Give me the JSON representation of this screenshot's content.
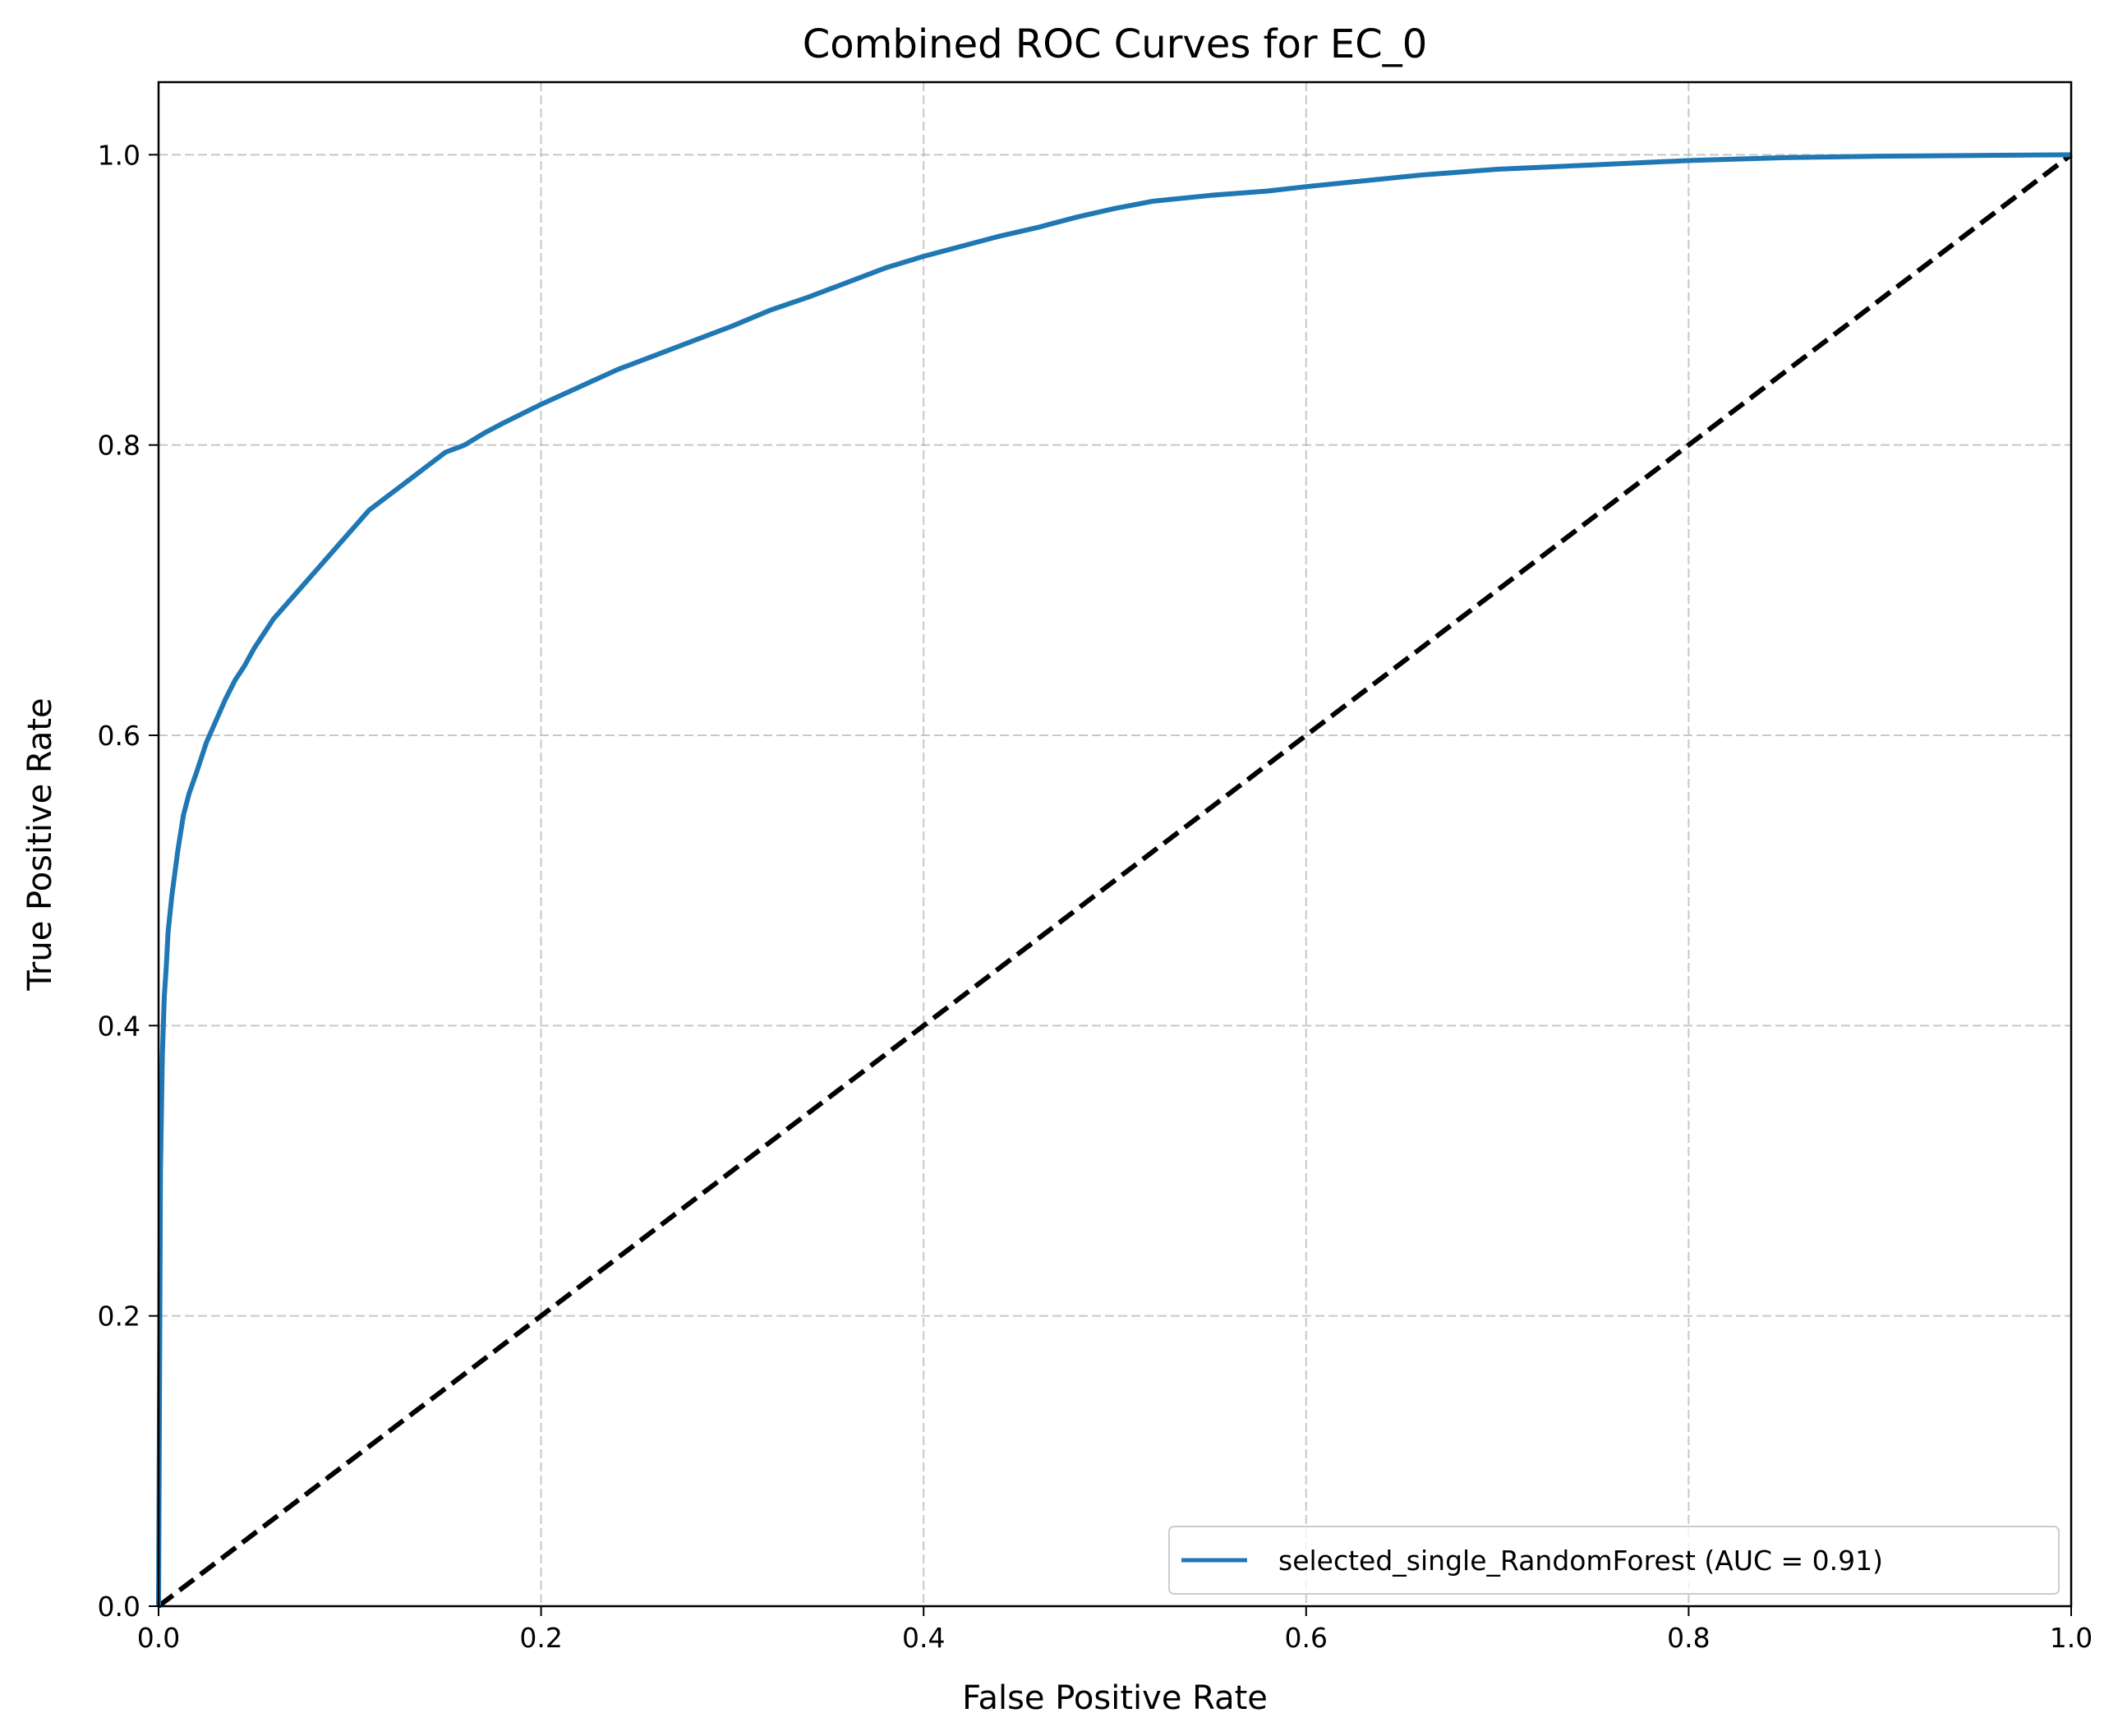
{
  "chart_data": {
    "type": "line",
    "title": "Combined ROC Curves for EC_0",
    "xlabel": "False Positive Rate",
    "ylabel": "True Positive Rate",
    "xlim": [
      0.0,
      1.0
    ],
    "ylim": [
      0.0,
      1.05
    ],
    "xticks": [
      "0.0",
      "0.2",
      "0.4",
      "0.6",
      "0.8",
      "1.0"
    ],
    "yticks": [
      "0.0",
      "0.2",
      "0.4",
      "0.6",
      "0.8",
      "1.0"
    ],
    "grid": true,
    "legend_position": "lower-right",
    "series": [
      {
        "name": "selected_single_RandomForest (AUC = 0.91)",
        "color": "#1f77b4",
        "x": [
          0,
          0.001,
          0.002,
          0.003,
          0.004,
          0.005,
          0.007,
          0.01,
          0.013,
          0.016,
          0.02,
          0.025,
          0.03,
          0.035,
          0.04,
          0.045,
          0.05,
          0.055,
          0.06,
          0.07,
          0.08,
          0.09,
          0.1,
          0.11,
          0.12,
          0.13,
          0.14,
          0.15,
          0.16,
          0.17,
          0.18,
          0.2,
          0.22,
          0.24,
          0.26,
          0.28,
          0.3,
          0.32,
          0.34,
          0.36,
          0.38,
          0.4,
          0.42,
          0.44,
          0.46,
          0.48,
          0.5,
          0.52,
          0.55,
          0.58,
          0.6,
          0.63,
          0.66,
          0.7,
          0.75,
          0.8,
          0.85,
          0.9,
          0.95,
          1.0
        ],
        "y": [
          0,
          0.3,
          0.38,
          0.42,
          0.44,
          0.465,
          0.49,
          0.52,
          0.545,
          0.56,
          0.575,
          0.595,
          0.61,
          0.625,
          0.638,
          0.648,
          0.66,
          0.67,
          0.68,
          0.695,
          0.71,
          0.725,
          0.74,
          0.755,
          0.765,
          0.775,
          0.785,
          0.795,
          0.8,
          0.808,
          0.815,
          0.828,
          0.84,
          0.852,
          0.862,
          0.872,
          0.882,
          0.893,
          0.902,
          0.912,
          0.922,
          0.93,
          0.937,
          0.944,
          0.95,
          0.957,
          0.963,
          0.968,
          0.972,
          0.975,
          0.978,
          0.982,
          0.986,
          0.99,
          0.993,
          0.996,
          0.998,
          0.999,
          0.9995,
          1.0
        ]
      }
    ],
    "reference_line": {
      "x": [
        0,
        1
      ],
      "y": [
        0,
        1
      ],
      "color": "#000000",
      "style": "dashed"
    }
  }
}
